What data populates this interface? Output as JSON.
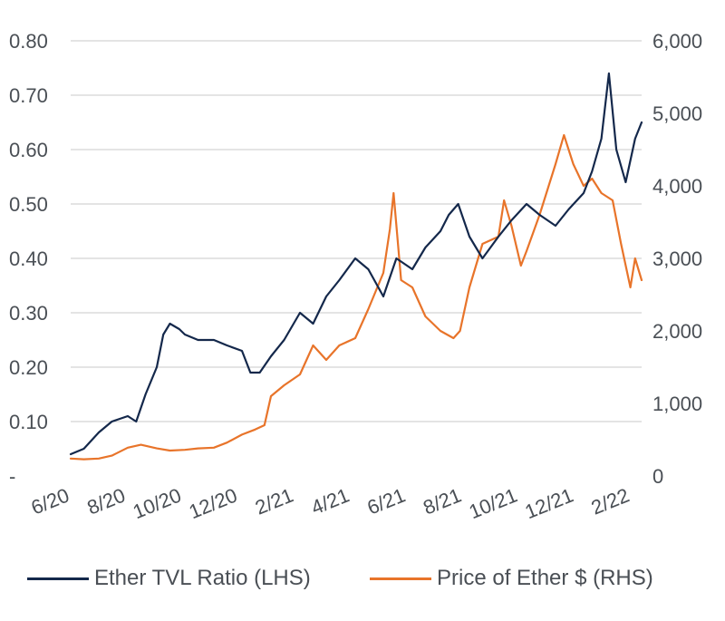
{
  "colors": {
    "tvl": "#14284b",
    "price": "#e8742a",
    "grid": "#c8c8c8",
    "text": "#4a4f55"
  },
  "legend": {
    "tvl_label": "Ether TVL Ratio (LHS)",
    "price_label": "Price of Ether $ (RHS)"
  },
  "chart_data": {
    "type": "line",
    "title": "",
    "xlabel": "",
    "ylabel_left": "",
    "ylabel_right": "",
    "grid": true,
    "legend_position": "bottom",
    "x_ticks": [
      "6/20",
      "8/20",
      "10/20",
      "12/20",
      "2/21",
      "4/21",
      "6/21",
      "8/21",
      "10/21",
      "12/21",
      "2/22"
    ],
    "y_left": {
      "ticks": [
        "-",
        "0.10",
        "0.20",
        "0.30",
        "0.40",
        "0.50",
        "0.60",
        "0.70",
        "0.80"
      ],
      "range": [
        0,
        0.8
      ]
    },
    "y_right": {
      "ticks": [
        "0",
        "1,000",
        "2,000",
        "3,000",
        "4,000",
        "5,000",
        "6,000"
      ],
      "range": [
        0,
        6000
      ]
    },
    "series": [
      {
        "name": "Ether TVL Ratio (LHS)",
        "axis": "left",
        "x": [
          "2020-06-01",
          "2020-06-15",
          "2020-07-01",
          "2020-07-15",
          "2020-08-01",
          "2020-08-10",
          "2020-08-20",
          "2020-09-01",
          "2020-09-08",
          "2020-09-15",
          "2020-09-25",
          "2020-10-01",
          "2020-10-15",
          "2020-11-01",
          "2020-11-15",
          "2020-12-01",
          "2020-12-10",
          "2020-12-20",
          "2021-01-01",
          "2021-01-15",
          "2021-02-01",
          "2021-02-15",
          "2021-03-01",
          "2021-03-15",
          "2021-04-01",
          "2021-04-15",
          "2021-05-01",
          "2021-05-15",
          "2021-06-01",
          "2021-06-15",
          "2021-07-01",
          "2021-07-10",
          "2021-07-20",
          "2021-08-01",
          "2021-08-15",
          "2021-09-01",
          "2021-09-15",
          "2021-10-01",
          "2021-10-15",
          "2021-11-01",
          "2021-11-15",
          "2021-12-01",
          "2021-12-10",
          "2021-12-20",
          "2021-12-28",
          "2022-01-05",
          "2022-01-15",
          "2022-01-25",
          "2022-02-01"
        ],
        "y": [
          0.04,
          0.05,
          0.08,
          0.1,
          0.11,
          0.1,
          0.15,
          0.2,
          0.26,
          0.28,
          0.27,
          0.26,
          0.25,
          0.25,
          0.24,
          0.23,
          0.19,
          0.19,
          0.22,
          0.25,
          0.3,
          0.28,
          0.33,
          0.36,
          0.4,
          0.38,
          0.33,
          0.4,
          0.38,
          0.42,
          0.45,
          0.48,
          0.5,
          0.44,
          0.4,
          0.44,
          0.47,
          0.5,
          0.48,
          0.46,
          0.49,
          0.52,
          0.56,
          0.62,
          0.74,
          0.6,
          0.54,
          0.62,
          0.65
        ]
      },
      {
        "name": "Price of Ether $ (RHS)",
        "axis": "right",
        "x": [
          "2020-06-01",
          "2020-06-15",
          "2020-07-01",
          "2020-07-15",
          "2020-08-01",
          "2020-08-15",
          "2020-09-01",
          "2020-09-15",
          "2020-10-01",
          "2020-10-15",
          "2020-11-01",
          "2020-11-15",
          "2020-12-01",
          "2020-12-15",
          "2020-12-25",
          "2021-01-01",
          "2021-01-15",
          "2021-02-01",
          "2021-02-15",
          "2021-03-01",
          "2021-03-15",
          "2021-04-01",
          "2021-04-15",
          "2021-05-01",
          "2021-05-08",
          "2021-05-12",
          "2021-05-20",
          "2021-06-01",
          "2021-06-15",
          "2021-07-01",
          "2021-07-15",
          "2021-07-22",
          "2021-08-01",
          "2021-08-15",
          "2021-09-01",
          "2021-09-07",
          "2021-09-15",
          "2021-09-25",
          "2021-10-01",
          "2021-10-15",
          "2021-11-01",
          "2021-11-10",
          "2021-11-20",
          "2021-12-01",
          "2021-12-10",
          "2021-12-20",
          "2022-01-01",
          "2022-01-10",
          "2022-01-20",
          "2022-01-25",
          "2022-02-01"
        ],
        "y": [
          240,
          230,
          240,
          280,
          390,
          430,
          380,
          350,
          360,
          380,
          390,
          460,
          570,
          640,
          700,
          1100,
          1250,
          1400,
          1800,
          1600,
          1800,
          1900,
          2300,
          2800,
          3400,
          3900,
          2700,
          2600,
          2200,
          2000,
          1900,
          2000,
          2600,
          3200,
          3300,
          3800,
          3450,
          2900,
          3100,
          3600,
          4300,
          4700,
          4300,
          4000,
          4100,
          3900,
          3800,
          3200,
          2600,
          3000,
          2700
        ]
      }
    ]
  }
}
